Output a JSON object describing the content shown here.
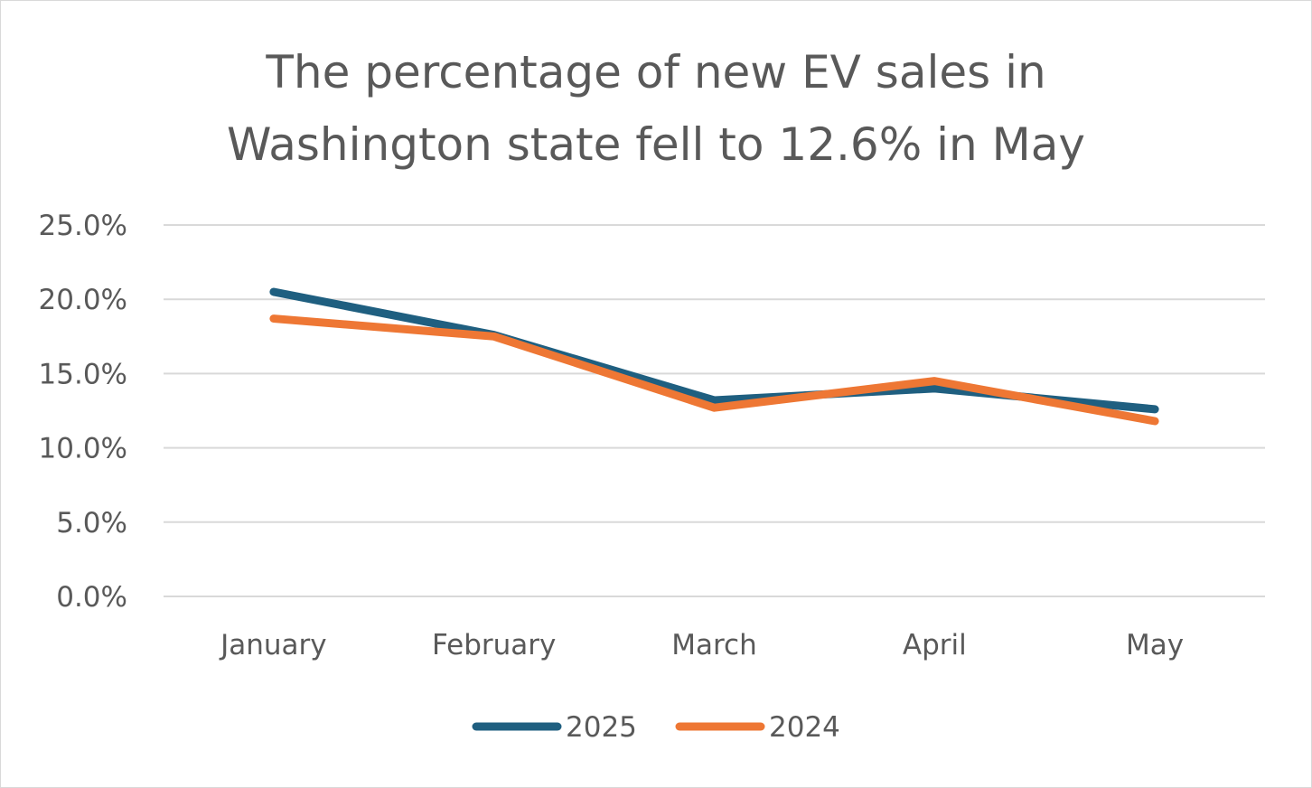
{
  "chart_data": {
    "type": "line",
    "title": "The percentage of new EV sales in Washington state fell to 12.6% in May",
    "title_lines": [
      "The percentage of new EV sales in",
      "Washington state fell to 12.6% in May"
    ],
    "categories": [
      "January",
      "February",
      "March",
      "April",
      "May"
    ],
    "series": [
      {
        "name": "2025",
        "color": "#1F5F80",
        "values": [
          20.5,
          17.6,
          13.2,
          14.0,
          12.6
        ]
      },
      {
        "name": "2024",
        "color": "#EE7734",
        "values": [
          18.7,
          17.5,
          12.7,
          14.5,
          11.8
        ]
      }
    ],
    "yticks": [
      "0.0%",
      "5.0%",
      "10.0%",
      "15.0%",
      "20.0%",
      "25.0%"
    ],
    "ylim": [
      0,
      25
    ],
    "y_format": "percent",
    "xlabel": "",
    "ylabel": "",
    "grid": true,
    "legend_position": "bottom",
    "gridline_color": "#D9D9D9",
    "text_color": "#595959"
  }
}
